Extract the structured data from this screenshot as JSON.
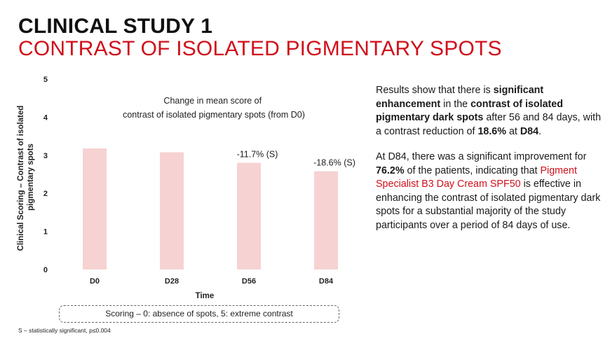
{
  "header": {
    "title_line1": "CLINICAL STUDY 1",
    "title_line2": "CONTRAST OF ISOLATED PIGMENTARY SPOTS"
  },
  "chart_data": {
    "type": "bar",
    "title": "Change in mean score of contrast of isolated pigmentary spots (from D0)",
    "title_lines": [
      "Change in mean score of",
      "contrast of isolated pigmentary spots (from D0)"
    ],
    "categories": [
      "D0",
      "D28",
      "D56",
      "D84"
    ],
    "values": [
      3.18,
      3.08,
      2.8,
      2.58
    ],
    "data_labels": [
      "",
      "",
      "-11.7% (S)",
      "-18.6% (S)"
    ],
    "xlabel": "Time",
    "ylabel_lines": [
      "Clinical Scoring – Contrast of isolated",
      "pigmentary spots"
    ],
    "ylim": [
      0,
      5
    ],
    "yticks": [
      0,
      1,
      2,
      3,
      4,
      5
    ],
    "grid": false,
    "bar_color": "#f6d2d2"
  },
  "scoring_note": "Scoring – 0: absence of spots, 5: extreme contrast",
  "footnote": "S – statistically significant, p≤0.004",
  "results": {
    "p1_a": "Results show that there is ",
    "p1_b": "significant enhancement",
    "p1_c": " in the ",
    "p1_d": "contrast of isolated pigmentary dark spots",
    "p1_e": " after 56 and 84 days, with a contrast reduction of ",
    "p1_f": "18.6%",
    "p1_g": " at ",
    "p1_h": "D84",
    "p1_i": ".",
    "p2_a": "At D84, there was a significant improvement for ",
    "p2_b": "76.2%",
    "p2_c": " of the patients, indicating that ",
    "p2_d": "Pigment Specialist B3 Day Cream SPF50",
    "p2_e": " is effective in enhancing the contrast of isolated pigmentary dark spots for a substantial majority of the study participants over a period of 84 days of use."
  },
  "colors": {
    "accent_red": "#d0101b",
    "bar_fill": "#f6d2d2"
  }
}
